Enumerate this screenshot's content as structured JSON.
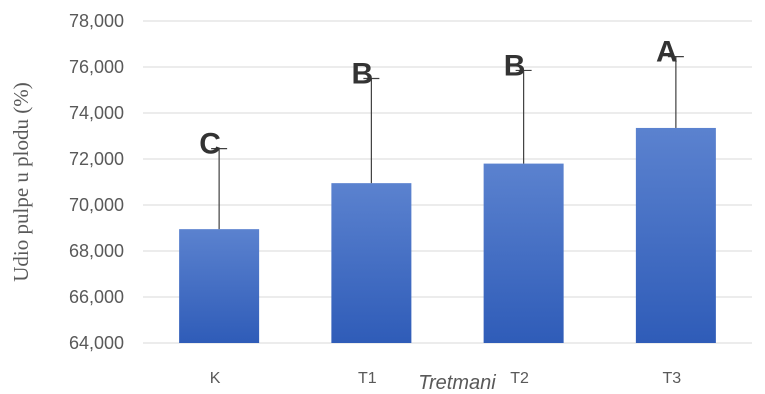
{
  "chart_data": {
    "type": "bar",
    "categories": [
      "K",
      "T1",
      "T2",
      "T3"
    ],
    "values": [
      68.95,
      70.95,
      71.8,
      73.35
    ],
    "errors": [
      3.5,
      4.55,
      4.05,
      3.1
    ],
    "significance_letters": [
      "C",
      "B",
      "B",
      "A"
    ],
    "xlabel": "Tretmani",
    "ylabel": "Udio pulpe u plodu (%)",
    "ylim": [
      64,
      78
    ],
    "ticks": [
      "64,000",
      "66,000",
      "68,000",
      "70,000",
      "72,000",
      "74,000",
      "76,000",
      "78,000"
    ],
    "tick_values": [
      64,
      66,
      68,
      70,
      72,
      74,
      76,
      78
    ],
    "grid": true,
    "colors": {
      "bar_top": "#5b82cf",
      "bar_bottom": "#2f5cb8",
      "grid": "#d9d9d9",
      "error": "#404040"
    }
  }
}
